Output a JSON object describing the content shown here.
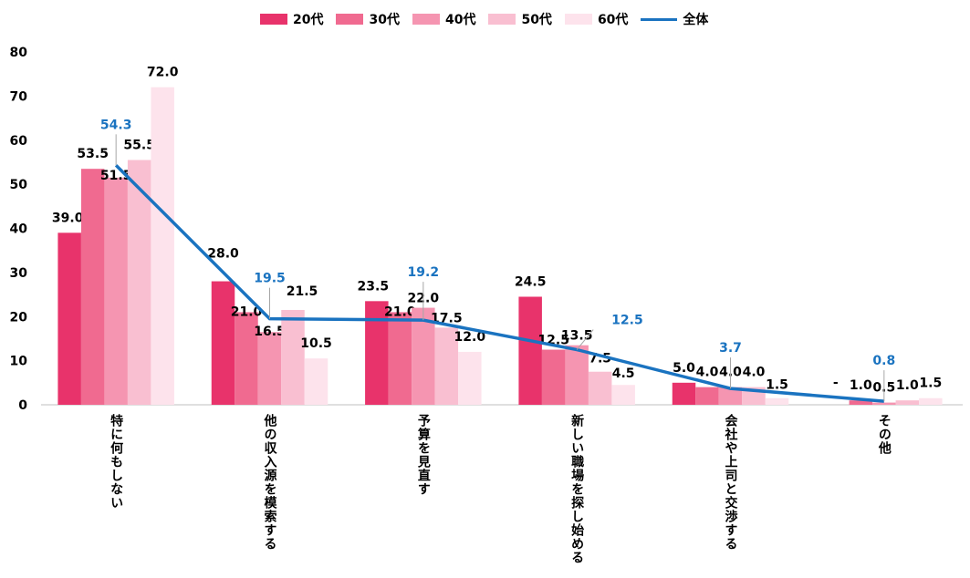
{
  "chart_data": {
    "type": "bar",
    "categories": [
      "特に何もしない",
      "他の収入源を模索する",
      "予算を見直す",
      "新しい職場を探し始める",
      "会社や上司と交渉する",
      "その他"
    ],
    "series": [
      {
        "name": "20代",
        "color": "#e8336b",
        "values": [
          39.0,
          28.0,
          23.5,
          24.5,
          5.0,
          null
        ],
        "labels": [
          "39.0",
          "28.0",
          "23.5",
          "24.5",
          "5.0",
          "-"
        ]
      },
      {
        "name": "30代",
        "color": "#f06a90",
        "values": [
          53.5,
          21.0,
          21.0,
          12.5,
          4.0,
          1.0
        ],
        "labels": [
          "53.5",
          "21.0",
          "21.0",
          "12.5",
          "4.0",
          "1.0"
        ]
      },
      {
        "name": "40代",
        "color": "#f595b1",
        "values": [
          51.5,
          16.5,
          22.0,
          13.5,
          4.0,
          0.5
        ],
        "labels": [
          "51.5",
          "16.5",
          "22.0",
          "13.5",
          "4.0",
          "0.5"
        ]
      },
      {
        "name": "50代",
        "color": "#f9bfd1",
        "values": [
          55.5,
          21.5,
          17.5,
          7.5,
          4.0,
          1.0
        ],
        "labels": [
          "55.5",
          "21.5",
          "17.5",
          "7.5",
          "4.0",
          "1.0"
        ]
      },
      {
        "name": "60代",
        "color": "#fde3ec",
        "values": [
          72.0,
          10.5,
          12.0,
          4.5,
          1.5,
          1.5
        ],
        "labels": [
          "72.0",
          "10.5",
          "12.0",
          "4.5",
          "1.5",
          "1.5"
        ]
      }
    ],
    "line_series": {
      "name": "全体",
      "color": "#1a73c0",
      "values": [
        54.3,
        19.5,
        19.2,
        12.5,
        3.7,
        0.8
      ],
      "labels": [
        "54.3",
        "19.5",
        "19.2",
        "12.5",
        "3.7",
        "0.8"
      ]
    },
    "ylim": [
      0,
      80
    ],
    "yticks": [
      "0",
      "10",
      "20",
      "30",
      "40",
      "50",
      "60",
      "70",
      "80"
    ],
    "grid": false,
    "legend_position": "top-center",
    "title": "",
    "xlabel": "",
    "ylabel": ""
  }
}
